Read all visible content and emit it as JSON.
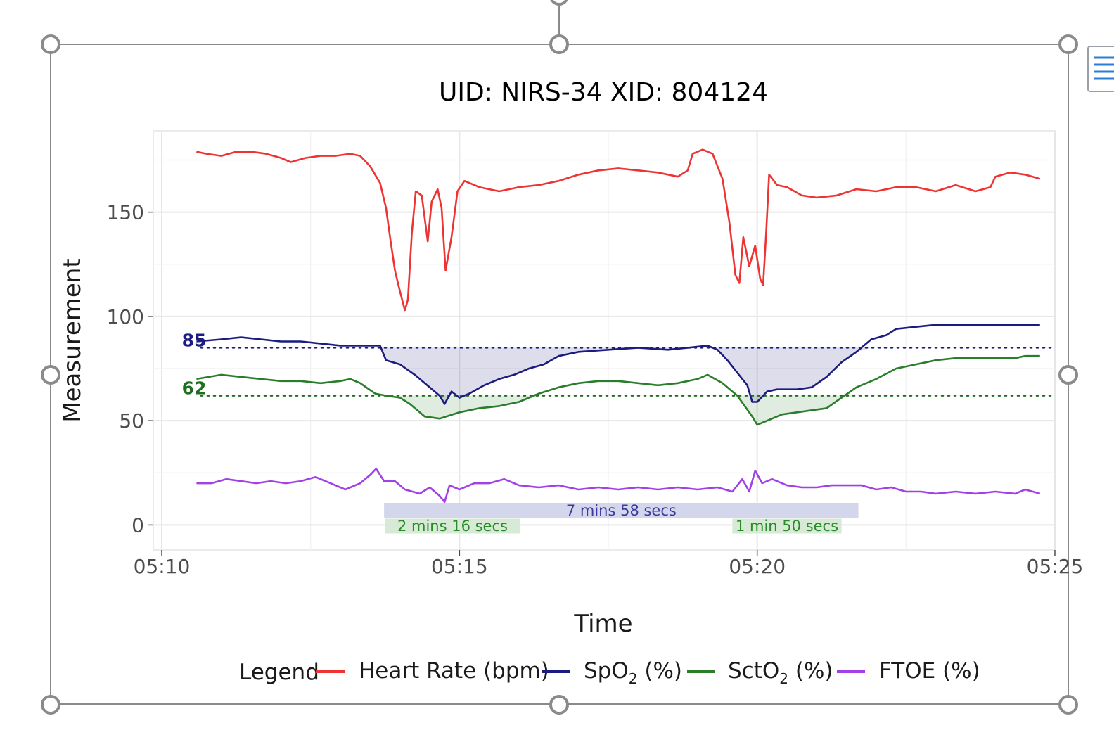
{
  "chart_data": {
    "type": "line",
    "title": "UID: NIRS-34  XID: 804124",
    "xlabel": "Time",
    "ylabel": "Measurement",
    "x_ticks": [
      "05:10",
      "05:15",
      "05:20",
      "05:25"
    ],
    "x_range": [
      "05:10",
      "05:25"
    ],
    "y_ticks": [
      0,
      50,
      100,
      150
    ],
    "ylim": [
      -12,
      189
    ],
    "grid": true,
    "legend": {
      "title": "Legend",
      "placement": "bottom",
      "entries": [
        {
          "label": "Heart Rate (bpm)",
          "color": "#ee3333"
        },
        {
          "label": "SpO",
          "sub": "2",
          "suffix": " (%)",
          "color": "#1c1c80"
        },
        {
          "label": "SctO",
          "sub": "2",
          "suffix": " (%)",
          "color": "#2a7d2a"
        },
        {
          "label": "FTOE (%)",
          "color": "#a040e6"
        }
      ]
    },
    "thresholds": [
      {
        "label": "85",
        "value": 85,
        "series": "SpO2",
        "color": "#1c1c80"
      },
      {
        "label": "62",
        "value": 62,
        "series": "SctO2",
        "color": "#1f6e1f"
      }
    ],
    "durations": [
      {
        "label": "7 mins 58 secs",
        "start": "05:13:44",
        "end": "05:21:42",
        "color": "#3b3b9e",
        "fill": "#d4d6ec"
      },
      {
        "label": "2 mins 16 secs",
        "start": "05:13:45",
        "end": "05:16:01",
        "color": "#2a8a2a",
        "fill": "#d6ead6"
      },
      {
        "label": "1 min 50 secs",
        "start": "05:19:35",
        "end": "05:21:25",
        "color": "#2a8a2a",
        "fill": "#d6ead6"
      }
    ],
    "series": [
      {
        "name": "Heart Rate (bpm)",
        "color": "#ee3333",
        "points": [
          [
            "05:10:35",
            179
          ],
          [
            "05:10:45",
            178
          ],
          [
            "05:11:00",
            177
          ],
          [
            "05:11:15",
            179
          ],
          [
            "05:11:30",
            179
          ],
          [
            "05:11:45",
            178
          ],
          [
            "05:12:00",
            176
          ],
          [
            "05:12:10",
            174
          ],
          [
            "05:12:25",
            176
          ],
          [
            "05:12:40",
            177
          ],
          [
            "05:12:55",
            177
          ],
          [
            "05:13:10",
            178
          ],
          [
            "05:13:20",
            177
          ],
          [
            "05:13:30",
            172
          ],
          [
            "05:13:40",
            164
          ],
          [
            "05:13:46",
            152
          ],
          [
            "05:13:50",
            138
          ],
          [
            "05:13:55",
            122
          ],
          [
            "05:14:00",
            112
          ],
          [
            "05:14:05",
            103
          ],
          [
            "05:14:08",
            108
          ],
          [
            "05:14:12",
            140
          ],
          [
            "05:14:16",
            160
          ],
          [
            "05:14:22",
            158
          ],
          [
            "05:14:28",
            136
          ],
          [
            "05:14:32",
            155
          ],
          [
            "05:14:38",
            161
          ],
          [
            "05:14:42",
            152
          ],
          [
            "05:14:46",
            122
          ],
          [
            "05:14:52",
            138
          ],
          [
            "05:14:58",
            160
          ],
          [
            "05:15:05",
            165
          ],
          [
            "05:15:20",
            162
          ],
          [
            "05:15:40",
            160
          ],
          [
            "05:16:00",
            162
          ],
          [
            "05:16:20",
            163
          ],
          [
            "05:16:40",
            165
          ],
          [
            "05:17:00",
            168
          ],
          [
            "05:17:20",
            170
          ],
          [
            "05:17:40",
            171
          ],
          [
            "05:18:00",
            170
          ],
          [
            "05:18:20",
            169
          ],
          [
            "05:18:40",
            167
          ],
          [
            "05:18:50",
            170
          ],
          [
            "05:18:55",
            178
          ],
          [
            "05:19:05",
            180
          ],
          [
            "05:19:15",
            178
          ],
          [
            "05:19:25",
            166
          ],
          [
            "05:19:32",
            145
          ],
          [
            "05:19:38",
            120
          ],
          [
            "05:19:42",
            116
          ],
          [
            "05:19:46",
            138
          ],
          [
            "05:19:52",
            124
          ],
          [
            "05:19:58",
            134
          ],
          [
            "05:20:03",
            118
          ],
          [
            "05:20:06",
            115
          ],
          [
            "05:20:09",
            140
          ],
          [
            "05:20:12",
            168
          ],
          [
            "05:20:20",
            163
          ],
          [
            "05:20:30",
            162
          ],
          [
            "05:20:45",
            158
          ],
          [
            "05:21:00",
            157
          ],
          [
            "05:21:20",
            158
          ],
          [
            "05:21:40",
            161
          ],
          [
            "05:22:00",
            160
          ],
          [
            "05:22:20",
            162
          ],
          [
            "05:22:40",
            162
          ],
          [
            "05:23:00",
            160
          ],
          [
            "05:23:20",
            163
          ],
          [
            "05:23:40",
            160
          ],
          [
            "05:23:55",
            162
          ],
          [
            "05:24:00",
            167
          ],
          [
            "05:24:15",
            169
          ],
          [
            "05:24:30",
            168
          ],
          [
            "05:24:45",
            166
          ]
        ]
      },
      {
        "name": "SpO2 (%)",
        "color": "#1c1c80",
        "points": [
          [
            "05:10:35",
            88
          ],
          [
            "05:11:00",
            89
          ],
          [
            "05:11:20",
            90
          ],
          [
            "05:11:40",
            89
          ],
          [
            "05:12:00",
            88
          ],
          [
            "05:12:20",
            88
          ],
          [
            "05:12:40",
            87
          ],
          [
            "05:13:00",
            86
          ],
          [
            "05:13:20",
            86
          ],
          [
            "05:13:40",
            86
          ],
          [
            "05:13:46",
            79
          ],
          [
            "05:14:00",
            77
          ],
          [
            "05:14:15",
            72
          ],
          [
            "05:14:30",
            66
          ],
          [
            "05:14:40",
            62
          ],
          [
            "05:14:45",
            58
          ],
          [
            "05:14:52",
            64
          ],
          [
            "05:15:00",
            61
          ],
          [
            "05:15:10",
            63
          ],
          [
            "05:15:25",
            67
          ],
          [
            "05:15:40",
            70
          ],
          [
            "05:15:55",
            72
          ],
          [
            "05:16:10",
            75
          ],
          [
            "05:16:25",
            77
          ],
          [
            "05:16:40",
            81
          ],
          [
            "05:17:00",
            83
          ],
          [
            "05:17:30",
            84
          ],
          [
            "05:18:00",
            85
          ],
          [
            "05:18:30",
            84
          ],
          [
            "05:18:50",
            85
          ],
          [
            "05:19:10",
            86
          ],
          [
            "05:19:20",
            84
          ],
          [
            "05:19:30",
            79
          ],
          [
            "05:19:40",
            73
          ],
          [
            "05:19:50",
            67
          ],
          [
            "05:19:55",
            59
          ],
          [
            "05:20:00",
            59
          ],
          [
            "05:20:10",
            64
          ],
          [
            "05:20:20",
            65
          ],
          [
            "05:20:40",
            65
          ],
          [
            "05:20:55",
            66
          ],
          [
            "05:21:10",
            71
          ],
          [
            "05:21:25",
            78
          ],
          [
            "05:21:40",
            83
          ],
          [
            "05:21:55",
            89
          ],
          [
            "05:22:10",
            91
          ],
          [
            "05:22:20",
            94
          ],
          [
            "05:22:40",
            95
          ],
          [
            "05:23:00",
            96
          ],
          [
            "05:23:30",
            96
          ],
          [
            "05:24:00",
            96
          ],
          [
            "05:24:30",
            96
          ],
          [
            "05:24:45",
            96
          ]
        ]
      },
      {
        "name": "SctO2 (%)",
        "color": "#2a7d2a",
        "points": [
          [
            "05:10:35",
            70
          ],
          [
            "05:11:00",
            72
          ],
          [
            "05:11:20",
            71
          ],
          [
            "05:11:40",
            70
          ],
          [
            "05:12:00",
            69
          ],
          [
            "05:12:20",
            69
          ],
          [
            "05:12:40",
            68
          ],
          [
            "05:13:00",
            69
          ],
          [
            "05:13:10",
            70
          ],
          [
            "05:13:20",
            68
          ],
          [
            "05:13:35",
            63
          ],
          [
            "05:13:46",
            62
          ],
          [
            "05:14:00",
            61
          ],
          [
            "05:14:10",
            58
          ],
          [
            "05:14:25",
            52
          ],
          [
            "05:14:40",
            51
          ],
          [
            "05:15:00",
            54
          ],
          [
            "05:15:20",
            56
          ],
          [
            "05:15:40",
            57
          ],
          [
            "05:16:00",
            59
          ],
          [
            "05:16:20",
            63
          ],
          [
            "05:16:40",
            66
          ],
          [
            "05:17:00",
            68
          ],
          [
            "05:17:20",
            69
          ],
          [
            "05:17:40",
            69
          ],
          [
            "05:18:00",
            68
          ],
          [
            "05:18:20",
            67
          ],
          [
            "05:18:40",
            68
          ],
          [
            "05:19:00",
            70
          ],
          [
            "05:19:10",
            72
          ],
          [
            "05:19:25",
            68
          ],
          [
            "05:19:40",
            62
          ],
          [
            "05:19:55",
            52
          ],
          [
            "05:20:00",
            48
          ],
          [
            "05:20:10",
            50
          ],
          [
            "05:20:25",
            53
          ],
          [
            "05:20:40",
            54
          ],
          [
            "05:20:55",
            55
          ],
          [
            "05:21:10",
            56
          ],
          [
            "05:21:25",
            61
          ],
          [
            "05:21:40",
            66
          ],
          [
            "05:22:00",
            70
          ],
          [
            "05:22:20",
            75
          ],
          [
            "05:22:40",
            77
          ],
          [
            "05:23:00",
            79
          ],
          [
            "05:23:20",
            80
          ],
          [
            "05:23:40",
            80
          ],
          [
            "05:24:00",
            80
          ],
          [
            "05:24:20",
            80
          ],
          [
            "05:24:30",
            81
          ],
          [
            "05:24:45",
            81
          ]
        ]
      },
      {
        "name": "FTOE (%)",
        "color": "#a040e6",
        "points": [
          [
            "05:10:35",
            20
          ],
          [
            "05:10:50",
            20
          ],
          [
            "05:11:05",
            22
          ],
          [
            "05:11:20",
            21
          ],
          [
            "05:11:35",
            20
          ],
          [
            "05:11:50",
            21
          ],
          [
            "05:12:05",
            20
          ],
          [
            "05:12:20",
            21
          ],
          [
            "05:12:35",
            23
          ],
          [
            "05:12:50",
            20
          ],
          [
            "05:13:05",
            17
          ],
          [
            "05:13:20",
            20
          ],
          [
            "05:13:30",
            24
          ],
          [
            "05:13:36",
            27
          ],
          [
            "05:13:44",
            21
          ],
          [
            "05:13:55",
            21
          ],
          [
            "05:14:05",
            17
          ],
          [
            "05:14:20",
            15
          ],
          [
            "05:14:30",
            18
          ],
          [
            "05:14:40",
            14
          ],
          [
            "05:14:45",
            11
          ],
          [
            "05:14:50",
            19
          ],
          [
            "05:15:00",
            17
          ],
          [
            "05:15:15",
            20
          ],
          [
            "05:15:30",
            20
          ],
          [
            "05:15:45",
            22
          ],
          [
            "05:16:00",
            19
          ],
          [
            "05:16:20",
            18
          ],
          [
            "05:16:40",
            19
          ],
          [
            "05:17:00",
            17
          ],
          [
            "05:17:20",
            18
          ],
          [
            "05:17:40",
            17
          ],
          [
            "05:18:00",
            18
          ],
          [
            "05:18:20",
            17
          ],
          [
            "05:18:40",
            18
          ],
          [
            "05:19:00",
            17
          ],
          [
            "05:19:20",
            18
          ],
          [
            "05:19:35",
            16
          ],
          [
            "05:19:45",
            22
          ],
          [
            "05:19:52",
            16
          ],
          [
            "05:19:58",
            26
          ],
          [
            "05:20:05",
            20
          ],
          [
            "05:20:15",
            22
          ],
          [
            "05:20:30",
            19
          ],
          [
            "05:20:45",
            18
          ],
          [
            "05:21:00",
            18
          ],
          [
            "05:21:15",
            19
          ],
          [
            "05:21:30",
            19
          ],
          [
            "05:21:45",
            19
          ],
          [
            "05:22:00",
            17
          ],
          [
            "05:22:15",
            18
          ],
          [
            "05:22:30",
            16
          ],
          [
            "05:22:45",
            16
          ],
          [
            "05:23:00",
            15
          ],
          [
            "05:23:20",
            16
          ],
          [
            "05:23:40",
            15
          ],
          [
            "05:24:00",
            16
          ],
          [
            "05:24:20",
            15
          ],
          [
            "05:24:30",
            17
          ],
          [
            "05:24:45",
            15
          ]
        ]
      }
    ]
  }
}
